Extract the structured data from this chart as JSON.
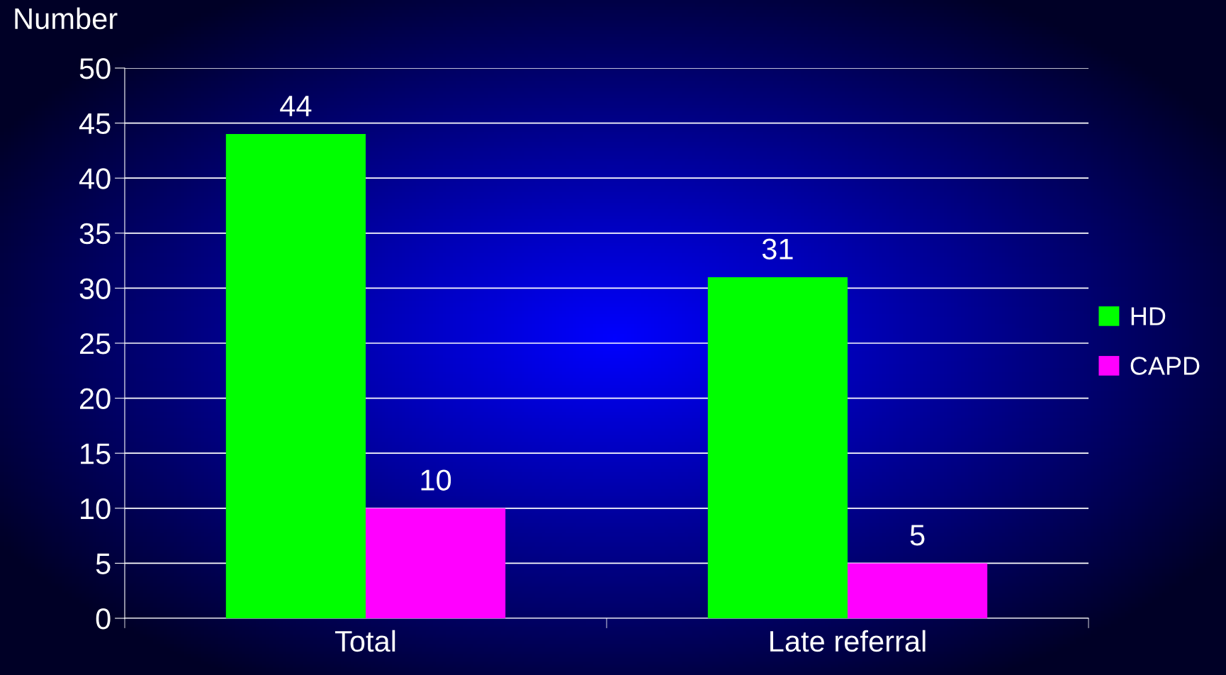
{
  "chart_data": {
    "type": "bar",
    "ylabel": "Number",
    "categories": [
      "Total",
      "Late referral"
    ],
    "series": [
      {
        "name": "HD",
        "color": "#00ff00",
        "values": [
          44,
          31
        ]
      },
      {
        "name": "CAPD",
        "color": "#ff00ff",
        "values": [
          10,
          5
        ]
      }
    ],
    "ylim": [
      0,
      50
    ],
    "yticks": [
      0,
      5,
      10,
      15,
      20,
      25,
      30,
      35,
      40,
      45,
      50
    ],
    "grid": "y",
    "legend": "right",
    "data_labels": true
  }
}
